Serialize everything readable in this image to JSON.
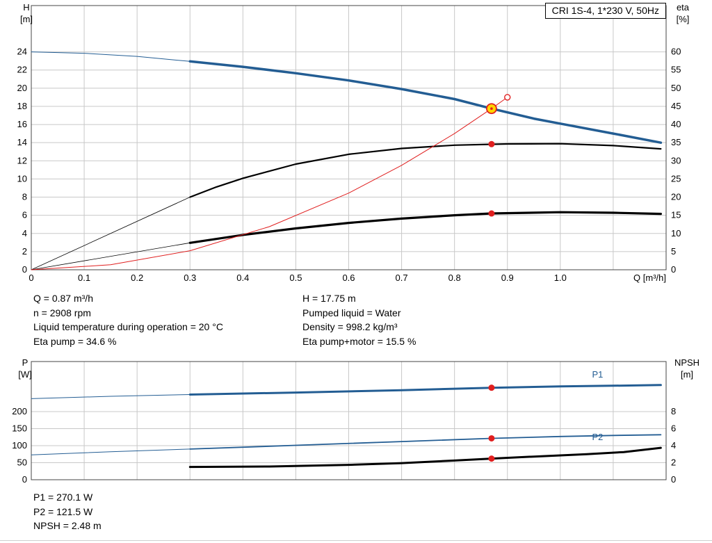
{
  "title_box": {
    "label": "CRI 1S-4, 1*230 V, 50Hz"
  },
  "colors": {
    "blue": "#235d93",
    "red": "#e01f1f",
    "black": "#000000",
    "grid": "#c8c8c8",
    "frame": "#444444",
    "duty_fill": "#ffd500"
  },
  "info_top_left": [
    "Q = 0.87 m³/h",
    "n = 2908 rpm",
    "Liquid temperature during operation = 20 °C",
    "Eta pump = 34.6 %"
  ],
  "info_top_right": [
    "H = 17.75 m",
    "Pumped liquid = Water",
    "Density = 998.2 kg/m³",
    "Eta pump+motor = 15.5 %"
  ],
  "info_bottom": [
    "P1 = 270.1 W",
    "P2 = 121.5 W",
    "NPSH = 2.48 m"
  ],
  "chart_data": [
    {
      "type": "line",
      "name": "qh-eta-chart",
      "title": "CRI 1S-4, 1*230 V, 50Hz",
      "x": {
        "label": "Q [m³/h]",
        "min": 0,
        "max": 1.2,
        "ticks": [
          "0",
          "0.1",
          "0.2",
          "0.3",
          "0.4",
          "0.5",
          "0.6",
          "0.7",
          "0.8",
          "0.9",
          "1.0"
        ],
        "grid": [
          0.1,
          0.2,
          0.3,
          0.4,
          0.5,
          0.6,
          0.7,
          0.8,
          0.9,
          1.0,
          1.1
        ],
        "show_labels": true
      },
      "y_left": {
        "label": [
          "H",
          "[m]"
        ],
        "min": 0,
        "max": 29.1,
        "ticks": [
          0,
          2,
          4,
          6,
          8,
          10,
          12,
          14,
          16,
          18,
          20,
          22,
          24
        ]
      },
      "y_right": {
        "label": [
          "eta",
          "[%]"
        ],
        "min": 0,
        "max": 72.75,
        "ticks": [
          0,
          5,
          10,
          15,
          20,
          25,
          30,
          35,
          40,
          45,
          50,
          55,
          60
        ]
      },
      "series": [
        {
          "name": "pump-curve-low-flow",
          "axis": "left",
          "color": "#235d93",
          "width": 1,
          "points": [
            [
              0,
              24
            ],
            [
              0.1,
              23.85
            ],
            [
              0.2,
              23.5
            ],
            [
              0.3,
              22.95
            ]
          ]
        },
        {
          "name": "pump-curve",
          "axis": "left",
          "color": "#235d93",
          "width": 3.5,
          "points": [
            [
              0.3,
              22.95
            ],
            [
              0.4,
              22.35
            ],
            [
              0.5,
              21.65
            ],
            [
              0.6,
              20.85
            ],
            [
              0.7,
              19.9
            ],
            [
              0.8,
              18.8
            ],
            [
              0.87,
              17.75
            ],
            [
              0.95,
              16.65
            ],
            [
              1.0,
              16.1
            ],
            [
              1.1,
              15.0
            ],
            [
              1.19,
              14.0
            ]
          ]
        },
        {
          "name": "eta-pump-low-flow",
          "axis": "right",
          "color": "#000000",
          "width": 0.8,
          "points": [
            [
              0,
              0
            ],
            [
              0.3,
              20
            ]
          ]
        },
        {
          "name": "eta-pump-curve",
          "axis": "right",
          "color": "#000000",
          "width": 2.2,
          "points": [
            [
              0.3,
              20
            ],
            [
              0.35,
              22.8
            ],
            [
              0.4,
              25.2
            ],
            [
              0.5,
              29.1
            ],
            [
              0.6,
              31.8
            ],
            [
              0.7,
              33.4
            ],
            [
              0.8,
              34.3
            ],
            [
              0.9,
              34.65
            ],
            [
              1.0,
              34.7
            ],
            [
              1.1,
              34.2
            ],
            [
              1.19,
              33.3
            ]
          ]
        },
        {
          "name": "eta-pump-motor-low-flow",
          "axis": "right",
          "color": "#000000",
          "width": 0.8,
          "points": [
            [
              0,
              0
            ],
            [
              0.3,
              7.4
            ]
          ]
        },
        {
          "name": "eta-pump-motor-curve",
          "axis": "right",
          "color": "#000000",
          "width": 3.2,
          "points": [
            [
              0.3,
              7.4
            ],
            [
              0.4,
              9.6
            ],
            [
              0.5,
              11.4
            ],
            [
              0.6,
              12.9
            ],
            [
              0.7,
              14.1
            ],
            [
              0.8,
              15.0
            ],
            [
              0.87,
              15.5
            ],
            [
              1.0,
              15.85
            ],
            [
              1.1,
              15.7
            ],
            [
              1.19,
              15.4
            ]
          ]
        },
        {
          "name": "system-curve",
          "axis": "left",
          "color": "#e01f1f",
          "width": 1,
          "points": [
            [
              0,
              0
            ],
            [
              0.15,
              0.55
            ],
            [
              0.3,
              2.1
            ],
            [
              0.45,
              4.75
            ],
            [
              0.6,
              8.45
            ],
            [
              0.7,
              11.5
            ],
            [
              0.8,
              15.0
            ],
            [
              0.87,
              17.75
            ],
            [
              0.9,
              19.0
            ]
          ]
        }
      ],
      "markers": [
        {
          "style": "dot",
          "x": 0.87,
          "axis": "right",
          "v": 34.6,
          "name": "eta-pump-duty-dot"
        },
        {
          "style": "dot",
          "x": 0.87,
          "axis": "right",
          "v": 15.5,
          "name": "eta-pump-motor-duty-dot"
        },
        {
          "style": "open",
          "x": 0.9,
          "axis": "left",
          "v": 19.0,
          "name": "rated-point"
        },
        {
          "style": "duty",
          "x": 0.87,
          "axis": "left",
          "v": 17.75,
          "name": "duty-point"
        }
      ],
      "duty_point": {
        "Q": 0.87,
        "H": 17.75,
        "eta_pump": 34.6,
        "eta_pump_motor": 15.5,
        "n_rpm": 2908
      }
    },
    {
      "type": "line",
      "name": "power-npsh-chart",
      "x": {
        "label": "",
        "min": 0,
        "max": 1.2,
        "ticks": [],
        "grid": [
          0.1,
          0.2,
          0.3,
          0.4,
          0.5,
          0.6,
          0.7,
          0.8,
          0.9,
          1.0,
          1.1
        ],
        "show_labels": false
      },
      "y_left": {
        "label": [
          "P",
          "[W]"
        ],
        "min": 0,
        "max": 347,
        "ticks": [
          0,
          50,
          100,
          150,
          200
        ]
      },
      "y_right": {
        "label": [
          "NPSH",
          "[m]"
        ],
        "min": 0,
        "max": 13.88,
        "ticks": [
          0,
          2,
          4,
          6,
          8
        ]
      },
      "series": [
        {
          "name": "p1-curve-low-flow",
          "axis": "left",
          "color": "#235d93",
          "width": 1,
          "points": [
            [
              0,
              238
            ],
            [
              0.15,
              245
            ],
            [
              0.3,
              250
            ]
          ]
        },
        {
          "name": "p1-curve",
          "axis": "left",
          "color": "#235d93",
          "width": 3,
          "points": [
            [
              0.3,
              250
            ],
            [
              0.5,
              256
            ],
            [
              0.7,
              263
            ],
            [
              0.87,
              270.1
            ],
            [
              1.0,
              274
            ],
            [
              1.1,
              276
            ],
            [
              1.19,
              278
            ]
          ]
        },
        {
          "name": "p2-curve-low-flow",
          "axis": "left",
          "color": "#235d93",
          "width": 1,
          "points": [
            [
              0,
              73
            ],
            [
              0.15,
              82
            ],
            [
              0.3,
              90
            ]
          ]
        },
        {
          "name": "p2-curve",
          "axis": "left",
          "color": "#235d93",
          "width": 1.8,
          "points": [
            [
              0.3,
              90
            ],
            [
              0.5,
              101
            ],
            [
              0.7,
              112
            ],
            [
              0.87,
              121.5
            ],
            [
              1.0,
              127
            ],
            [
              1.1,
              130
            ],
            [
              1.19,
              132
            ]
          ]
        },
        {
          "name": "npsh-curve",
          "axis": "right",
          "color": "#000000",
          "width": 3,
          "points": [
            [
              0.3,
              1.5
            ],
            [
              0.45,
              1.55
            ],
            [
              0.6,
              1.75
            ],
            [
              0.7,
              1.95
            ],
            [
              0.8,
              2.25
            ],
            [
              0.87,
              2.48
            ],
            [
              0.95,
              2.72
            ],
            [
              1.05,
              3.0
            ],
            [
              1.12,
              3.25
            ],
            [
              1.19,
              3.75
            ]
          ]
        }
      ],
      "annotations": [
        {
          "text": "P1",
          "x": 1.06,
          "axis": "left",
          "v": 300,
          "color": "#235d93",
          "name": "p1-curve-label"
        },
        {
          "text": "P2",
          "x": 1.06,
          "axis": "left",
          "v": 116,
          "color": "#235d93",
          "name": "p2-curve-label"
        }
      ],
      "markers": [
        {
          "style": "dot",
          "x": 0.87,
          "axis": "left",
          "v": 270.1,
          "name": "p1-duty-dot"
        },
        {
          "style": "dot",
          "x": 0.87,
          "axis": "left",
          "v": 121.5,
          "name": "p2-duty-dot"
        },
        {
          "style": "dot",
          "x": 0.87,
          "axis": "right",
          "v": 2.48,
          "name": "npsh-duty-dot"
        }
      ],
      "duty_point": {
        "Q": 0.87,
        "P1_W": 270.1,
        "P2_W": 121.5,
        "NPSH_m": 2.48
      }
    }
  ]
}
